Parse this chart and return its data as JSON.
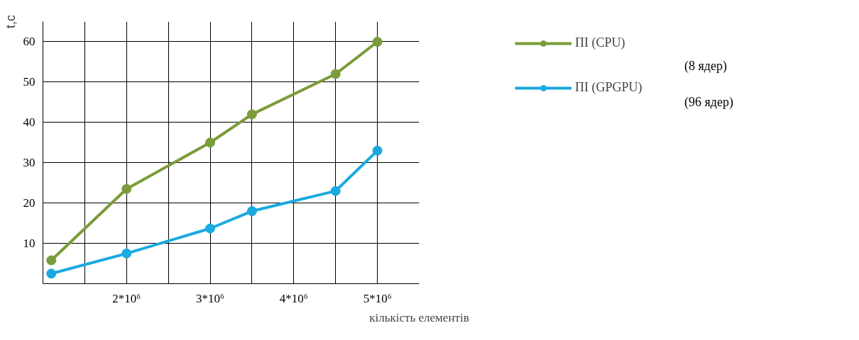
{
  "chart_data": {
    "type": "line",
    "ylabel": "t,c",
    "xlabel": "кількість елементів",
    "x": [
      1100000,
      2000000,
      3000000,
      3500000,
      4500000,
      5000000
    ],
    "series": [
      {
        "name": "ПІ (CPU)",
        "color": "#7a9c3a",
        "values": [
          5.8,
          23.5,
          35,
          42,
          52,
          60
        ]
      },
      {
        "name": "ПІ (GPGPU)",
        "color": "#1aa9e0",
        "values": [
          2.5,
          7.5,
          13.7,
          18,
          23,
          33
        ]
      }
    ],
    "annotations": [
      "(8 ядер)",
      "(96 ядер)"
    ],
    "xlim": [
      1000000,
      5500000
    ],
    "ylim": [
      0,
      65
    ],
    "xticks": [
      {
        "value": 1500000,
        "label": null
      },
      {
        "value": 2000000,
        "label": "2*10⁶"
      },
      {
        "value": 2500000,
        "label": null
      },
      {
        "value": 3000000,
        "label": "3*10⁶"
      },
      {
        "value": 3500000,
        "label": null
      },
      {
        "value": 4000000,
        "label": "4*10⁶"
      },
      {
        "value": 4500000,
        "label": null
      },
      {
        "value": 5000000,
        "label": "5*10⁶"
      }
    ],
    "yticks": [
      10,
      20,
      30,
      40,
      50,
      60
    ],
    "grid": true,
    "legend": "top right",
    "marker": "circle",
    "line_style": "solid"
  }
}
